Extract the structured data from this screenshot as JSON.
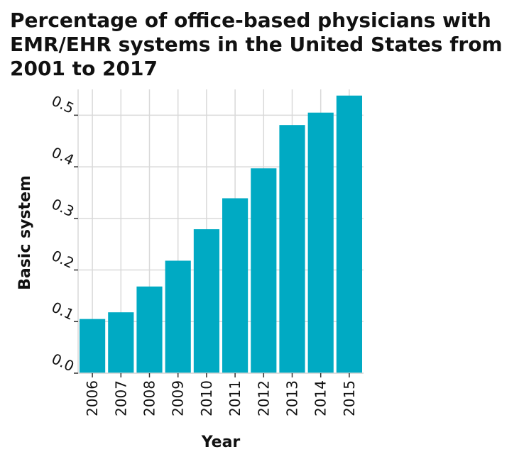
{
  "chart_data": {
    "type": "bar",
    "title": "Percentage of office-based physicians with EMR/EHR systems in the United States from 2001 to 2017",
    "xlabel": "Year",
    "ylabel": "Basic system",
    "categories": [
      "2006",
      "2007",
      "2008",
      "2009",
      "2010",
      "2011",
      "2012",
      "2013",
      "2014",
      "2015"
    ],
    "values": [
      0.105,
      0.118,
      0.168,
      0.218,
      0.279,
      0.339,
      0.397,
      0.481,
      0.505,
      0.538
    ],
    "ylim": [
      0,
      0.55
    ],
    "yticks": [
      "0.0",
      "0.1",
      "0.2",
      "0.3",
      "0.4",
      "0.5"
    ],
    "grid": true,
    "bar_color": "#00aac3",
    "grid_color": "#d9d9d9"
  }
}
